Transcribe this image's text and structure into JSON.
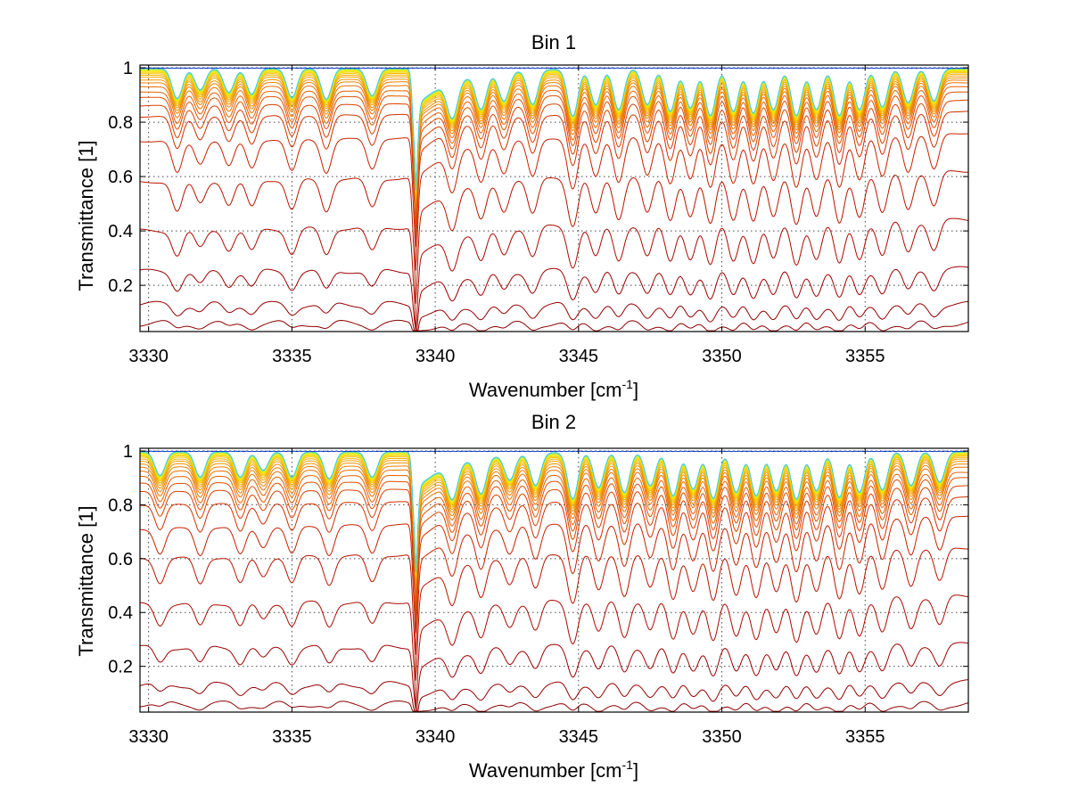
{
  "chart_data": [
    {
      "type": "line",
      "title": "Bin 1",
      "xlabel": "Wavenumber [cm",
      "xlabel_sup": "-1",
      "xlabel_suffix": "]",
      "ylabel": "Transmittance [1]",
      "xlim": [
        3329.7,
        3358.6
      ],
      "ylim": [
        0.03,
        1.01
      ],
      "xticks": [
        3330,
        3335,
        3340,
        3345,
        3350,
        3355
      ],
      "xtick_labels": [
        "3330",
        "3335",
        "3340",
        "3345",
        "3350",
        "3355"
      ],
      "yticks": [
        0.2,
        0.4,
        0.6,
        0.8,
        1
      ],
      "ytick_labels": [
        "0.2",
        "0.4",
        "0.6",
        "0.8",
        "1"
      ],
      "grid": true,
      "series_count": 24,
      "baseline_left": [
        0.06,
        0.13,
        0.25,
        0.4,
        0.58,
        0.73,
        0.82,
        0.86,
        0.89,
        0.91,
        0.93,
        0.945,
        0.955,
        0.965,
        0.972,
        0.978,
        0.983,
        0.987,
        0.99,
        0.992,
        0.994,
        0.996,
        0.998,
        0.999
      ],
      "baseline_right": [
        0.06,
        0.13,
        0.26,
        0.44,
        0.62,
        0.76,
        0.84,
        0.88,
        0.91,
        0.93,
        0.945,
        0.955,
        0.963,
        0.97,
        0.976,
        0.981,
        0.985,
        0.988,
        0.991,
        0.993,
        0.995,
        0.997,
        0.998,
        0.999
      ],
      "series_colors": [
        "#8b0000",
        "#930000",
        "#9e0000",
        "#aa0a00",
        "#b81400",
        "#c62000",
        "#d03000",
        "#d84000",
        "#df5000",
        "#e46000",
        "#e87000",
        "#ec8000",
        "#ef9000",
        "#f2a000",
        "#f4b000",
        "#f6c000",
        "#f7d000",
        "#f8e000",
        "#eeee10",
        "#cfee30",
        "#a8e860",
        "#80e0a0",
        "#40c8e0",
        "#0030c0"
      ],
      "line_centers": [
        3331.0,
        3331.8,
        3332.8,
        3333.6,
        3335.0,
        3336.2,
        3337.8,
        3339.3,
        3340.6,
        3341.6,
        3342.4,
        3343.4,
        3344.8,
        3345.6,
        3346.4,
        3347.4,
        3348.2,
        3348.9,
        3349.6,
        3350.4,
        3351.1,
        3351.8,
        3352.6,
        3353.3,
        3354.1,
        3354.8,
        3355.6,
        3356.5,
        3357.4
      ],
      "line_strengths": [
        0.35,
        0.25,
        0.28,
        0.3,
        0.34,
        0.36,
        0.32,
        1.0,
        0.42,
        0.4,
        0.34,
        0.4,
        0.55,
        0.42,
        0.48,
        0.42,
        0.5,
        0.46,
        0.55,
        0.5,
        0.52,
        0.48,
        0.55,
        0.48,
        0.55,
        0.48,
        0.45,
        0.4,
        0.38
      ]
    },
    {
      "type": "line",
      "title": "Bin 2",
      "xlabel": "Wavenumber [cm",
      "xlabel_sup": "-1",
      "xlabel_suffix": "]",
      "ylabel": "Transmittance [1]",
      "xlim": [
        3329.7,
        3358.6
      ],
      "ylim": [
        0.03,
        1.01
      ],
      "xticks": [
        3330,
        3335,
        3340,
        3345,
        3350,
        3355
      ],
      "xtick_labels": [
        "3330",
        "3335",
        "3340",
        "3345",
        "3350",
        "3355"
      ],
      "yticks": [
        0.2,
        0.4,
        0.6,
        0.8,
        1
      ],
      "ytick_labels": [
        "0.2",
        "0.4",
        "0.6",
        "0.8",
        "1"
      ],
      "grid": true,
      "series_count": 24,
      "baseline_left": [
        0.06,
        0.13,
        0.27,
        0.43,
        0.6,
        0.71,
        0.8,
        0.85,
        0.88,
        0.905,
        0.925,
        0.94,
        0.952,
        0.962,
        0.97,
        0.977,
        0.982,
        0.986,
        0.99,
        0.992,
        0.994,
        0.996,
        0.998,
        0.999
      ],
      "baseline_right": [
        0.06,
        0.14,
        0.28,
        0.46,
        0.64,
        0.76,
        0.83,
        0.87,
        0.9,
        0.92,
        0.94,
        0.952,
        0.962,
        0.97,
        0.976,
        0.981,
        0.985,
        0.988,
        0.991,
        0.993,
        0.995,
        0.997,
        0.998,
        0.999
      ],
      "series_colors": [
        "#8b0000",
        "#930000",
        "#9e0000",
        "#aa0a00",
        "#b81400",
        "#c62000",
        "#d03000",
        "#d84000",
        "#df5000",
        "#e46000",
        "#e87000",
        "#ec8000",
        "#ef9000",
        "#f2a000",
        "#f4b000",
        "#f6c000",
        "#f7d000",
        "#f8e000",
        "#eeee10",
        "#cfee30",
        "#a8e860",
        "#80e0a0",
        "#40c8e0",
        "#0030c0"
      ],
      "line_centers": [
        3330.4,
        3331.8,
        3333.2,
        3334.0,
        3335.0,
        3336.3,
        3337.8,
        3339.3,
        3340.6,
        3341.6,
        3342.6,
        3343.5,
        3344.8,
        3345.7,
        3346.6,
        3347.5,
        3348.3,
        3349.0,
        3349.7,
        3350.5,
        3351.2,
        3351.9,
        3352.6,
        3353.3,
        3354.1,
        3354.8,
        3355.6,
        3356.6,
        3357.6
      ],
      "line_strengths": [
        0.28,
        0.3,
        0.3,
        0.22,
        0.3,
        0.32,
        0.3,
        1.0,
        0.4,
        0.42,
        0.3,
        0.38,
        0.55,
        0.42,
        0.48,
        0.4,
        0.52,
        0.44,
        0.55,
        0.48,
        0.52,
        0.46,
        0.56,
        0.46,
        0.54,
        0.48,
        0.45,
        0.4,
        0.36
      ]
    }
  ]
}
